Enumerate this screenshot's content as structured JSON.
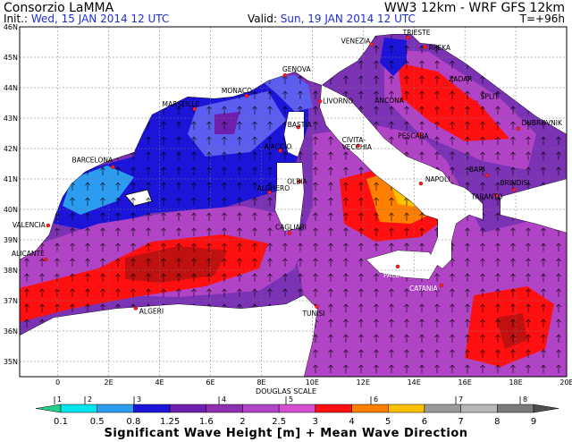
{
  "header": {
    "org": "Consorzio LaMMA",
    "model": "WW3 12km - WRF GFS 12km",
    "init_label": "Init.:",
    "init_value": "Wed, 15 JAN 2014 12 UTC",
    "valid_label": "Valid:",
    "valid_value": "Sun, 19 JAN 2014 12 UTC",
    "forecast_step": "T=+96h"
  },
  "axes": {
    "lat_labels": [
      "46N",
      "45N",
      "44N",
      "43N",
      "42N",
      "41N",
      "40N",
      "39N",
      "38N",
      "37N",
      "36N",
      "35N"
    ],
    "lon_labels": [
      "0",
      "2E",
      "4E",
      "6E",
      "8E",
      "10E",
      "12E",
      "14E",
      "16E",
      "18E",
      "20E"
    ]
  },
  "cities": [
    {
      "name": "TRIESTE",
      "white": false
    },
    {
      "name": "VENEZIA",
      "white": false
    },
    {
      "name": "RIJEKA",
      "white": false
    },
    {
      "name": "GENOVA",
      "white": false
    },
    {
      "name": "MONACO",
      "white": false
    },
    {
      "name": "MARSEILLE",
      "white": false
    },
    {
      "name": "LIVORNO",
      "white": false
    },
    {
      "name": "ZADAR",
      "white": false
    },
    {
      "name": "ANCONA",
      "white": false
    },
    {
      "name": "SPLIT",
      "white": false
    },
    {
      "name": "DUBROVNIK",
      "white": false
    },
    {
      "name": "BASTIA",
      "white": false
    },
    {
      "name": "AJACCIO",
      "white": false
    },
    {
      "name": "PESCARA",
      "white": false
    },
    {
      "name": "CIVITA-",
      "white": false
    },
    {
      "name": "VECCHIA",
      "white": false
    },
    {
      "name": "BARCELONA",
      "white": false
    },
    {
      "name": "OLBIA",
      "white": false
    },
    {
      "name": "ALGHERO",
      "white": false
    },
    {
      "name": "BARI",
      "white": false
    },
    {
      "name": "NAPOLI",
      "white": false
    },
    {
      "name": "BRINDISI",
      "white": false
    },
    {
      "name": "TARANTO",
      "white": false
    },
    {
      "name": "VALENCIA",
      "white": false
    },
    {
      "name": "CAGLIARI",
      "white": false
    },
    {
      "name": "ALICANTE",
      "white": false
    },
    {
      "name": "PALERMO",
      "white": true
    },
    {
      "name": "CATANIA",
      "white": true
    },
    {
      "name": "TUNISI",
      "white": false
    },
    {
      "name": "ALGERI",
      "white": false
    }
  ],
  "douglas": {
    "title": "DOUGLAS SCALE",
    "degrees": [
      "1",
      "2",
      "3",
      "4",
      "5",
      "6",
      "7",
      "8"
    ]
  },
  "colorbar": {
    "thresholds": [
      "0.1",
      "0.5",
      "0.8",
      "1.25",
      "1.6",
      "2",
      "2.5",
      "3",
      "4",
      "5",
      "6",
      "7",
      "8",
      "9"
    ],
    "colors": [
      "#21d18a",
      "#00e5ee",
      "#2c9cf0",
      "#1c14d8",
      "#6f1fae",
      "#8e2fb0",
      "#b143c6",
      "#d44fd0",
      "#ff1010",
      "#ff7f00",
      "#ffc000",
      "#9a9a9a",
      "#b8b8b8",
      "#7a7a7a",
      "#4f4f4f"
    ]
  },
  "footer": {
    "caption": "Significant Wave Height [m] + Mean Wave Direction"
  }
}
